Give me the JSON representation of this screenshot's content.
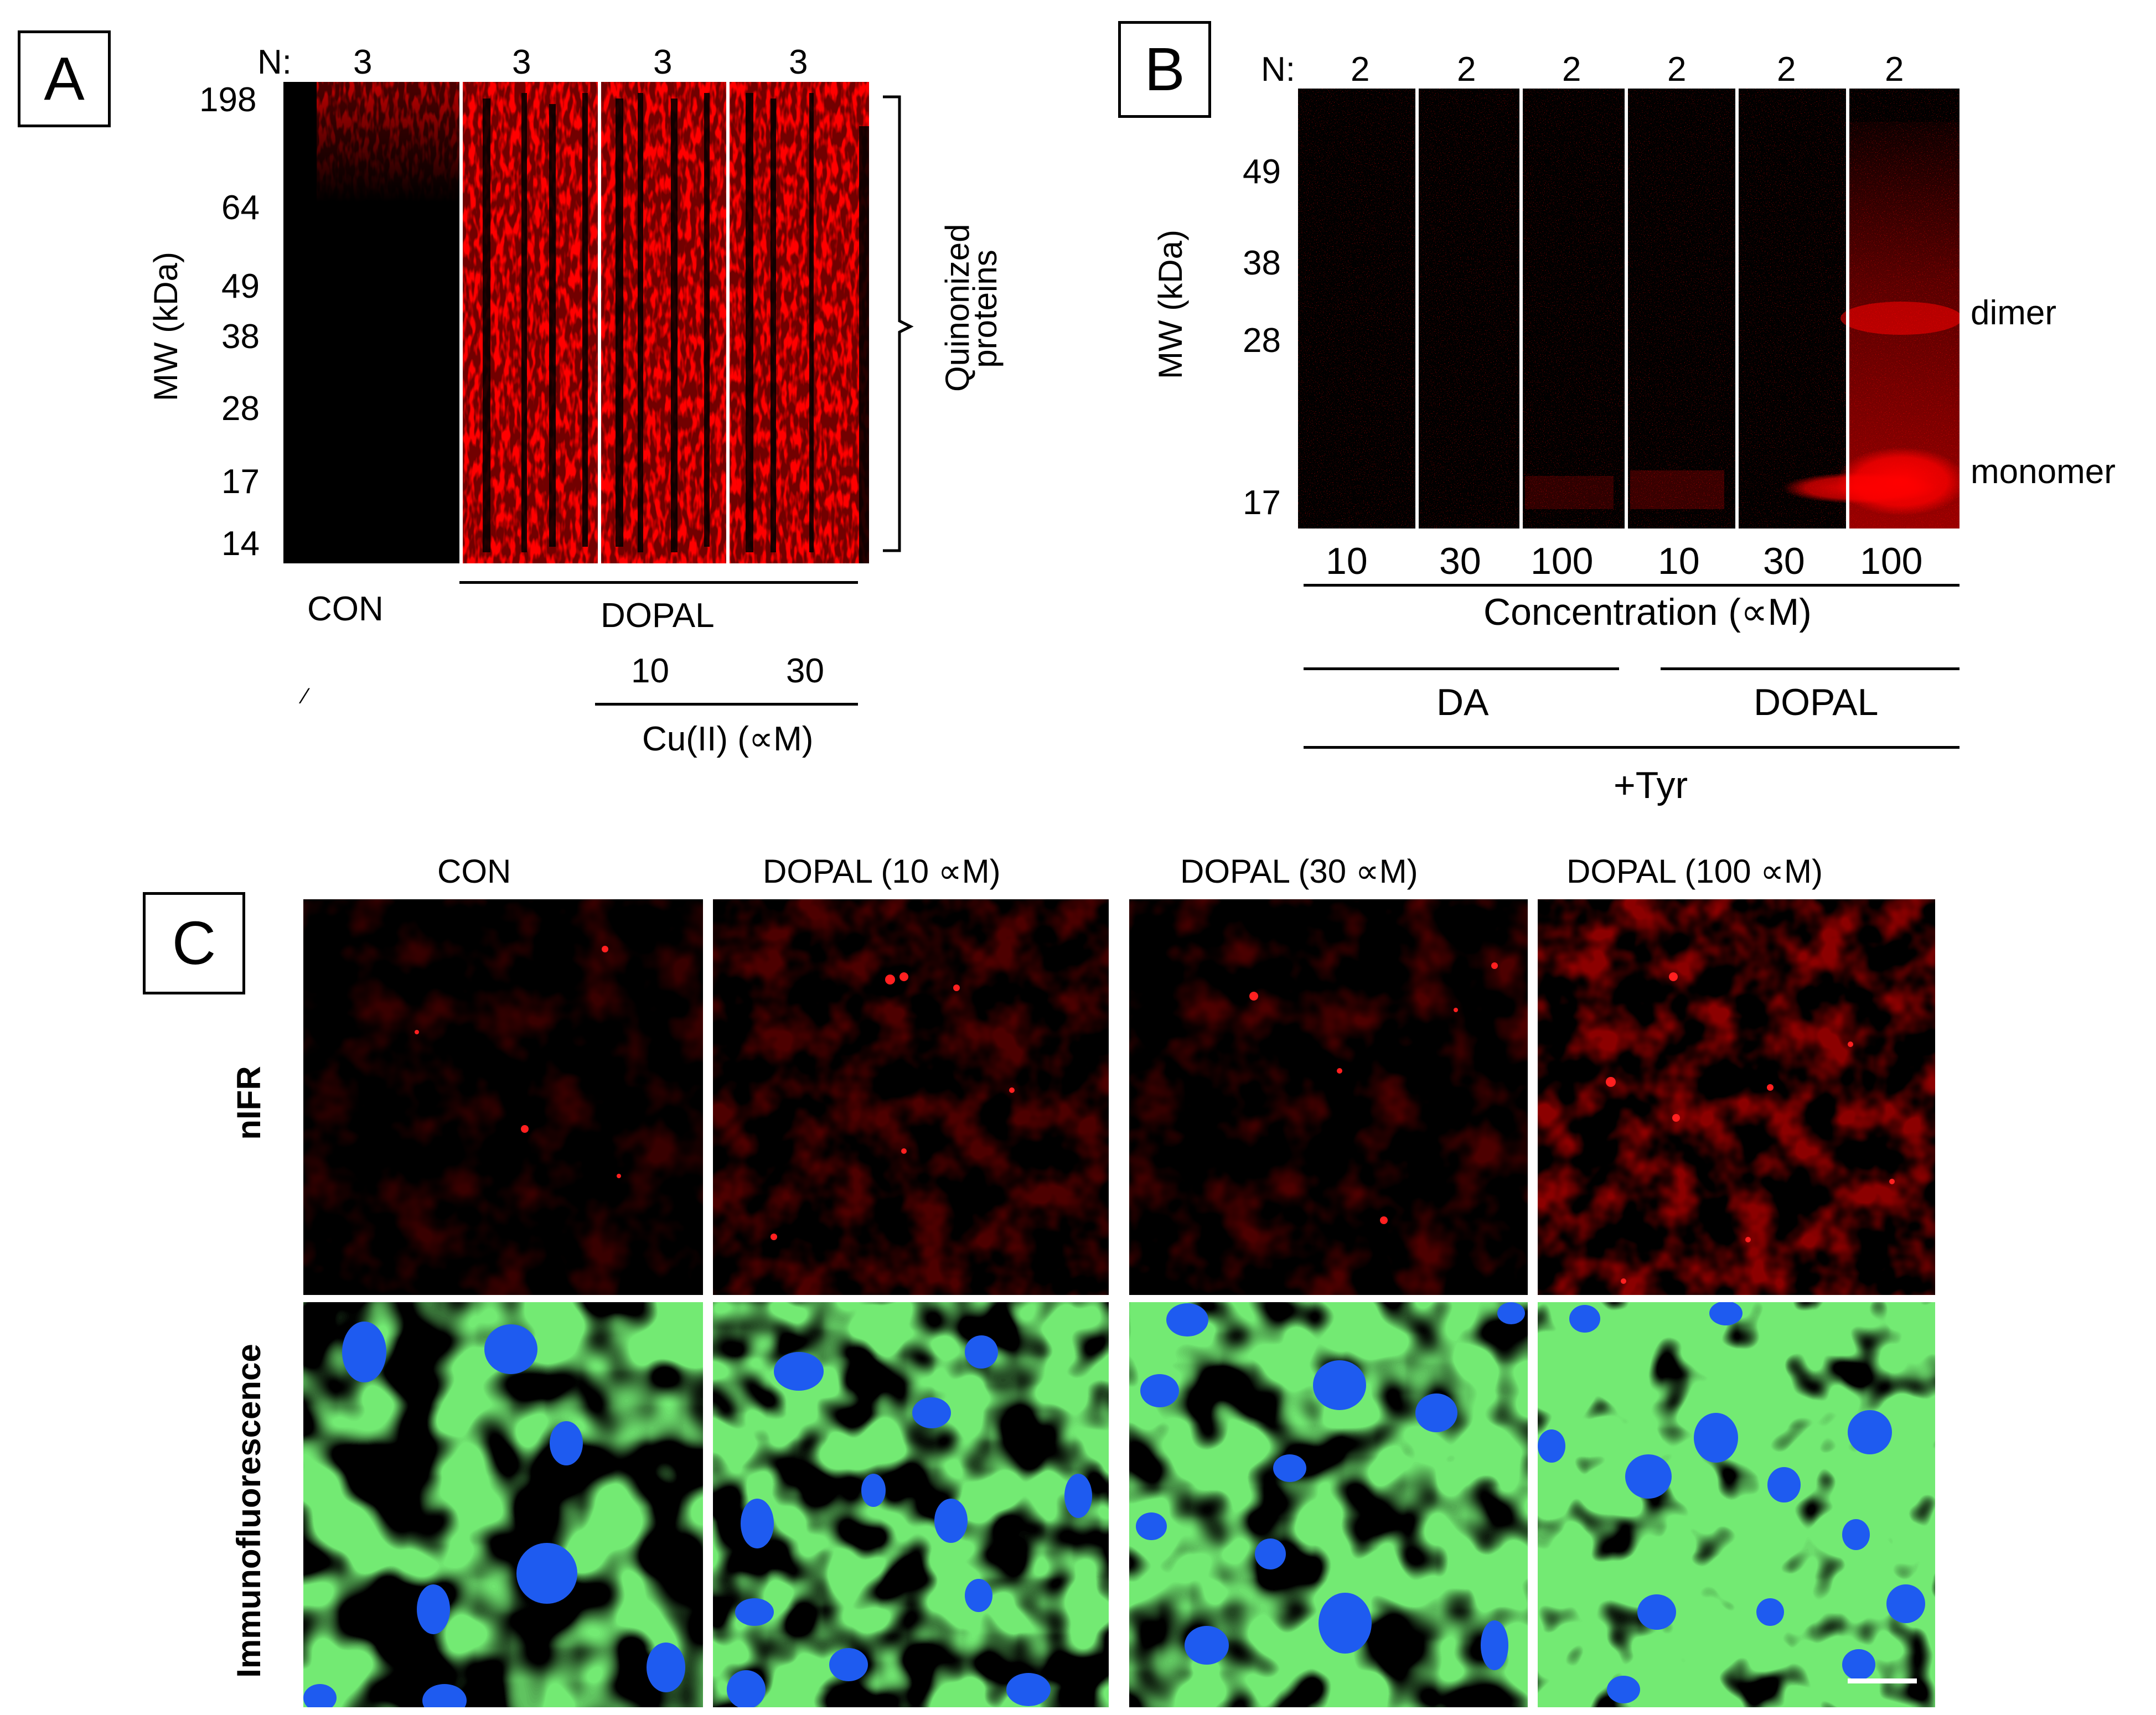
{
  "panel_a": {
    "label": "A",
    "n_prefix": "N:",
    "n_values": [
      "3",
      "3",
      "3",
      "3"
    ],
    "mw_ticks": [
      "198",
      "64",
      "49",
      "38",
      "28",
      "17",
      "14"
    ],
    "y_axis_label": "MW (kDa)",
    "bracket_label_line1": "Quinonized",
    "bracket_label_line2": "proteins",
    "con_label": "CON",
    "dopal_label": "DOPAL",
    "cu_values": [
      "10",
      "30"
    ],
    "cu_label": "Cu(II) (∝M)",
    "stray_mark": "⁄"
  },
  "panel_b": {
    "label": "B",
    "n_prefix": "N:",
    "n_values": [
      "2",
      "2",
      "2",
      "2",
      "2",
      "2"
    ],
    "mw_ticks": [
      "49",
      "38",
      "28",
      "17"
    ],
    "y_axis_label": "MW (kDa)",
    "dimer_label": "dimer",
    "monomer_label": "monomer",
    "conc_values": [
      "10",
      "30",
      "100",
      "10",
      "30",
      "100"
    ],
    "conc_label": "Concentration (∝M)",
    "da_label": "DA",
    "dopal_label": "DOPAL",
    "tyr_label": "+Tyr"
  },
  "panel_c": {
    "label": "C",
    "column_headers": [
      "CON",
      "DOPAL (10 ∝M)",
      "DOPAL (30 ∝M)",
      "DOPAL (100 ∝M)"
    ],
    "row_labels": [
      "nIFR",
      "Immunofluorescence"
    ]
  },
  "colors": {
    "gel_red": "#ff0000",
    "background": "#000000",
    "tubulin_green": "#2bd12b",
    "nuclei_blue": "#1e5bf0"
  }
}
